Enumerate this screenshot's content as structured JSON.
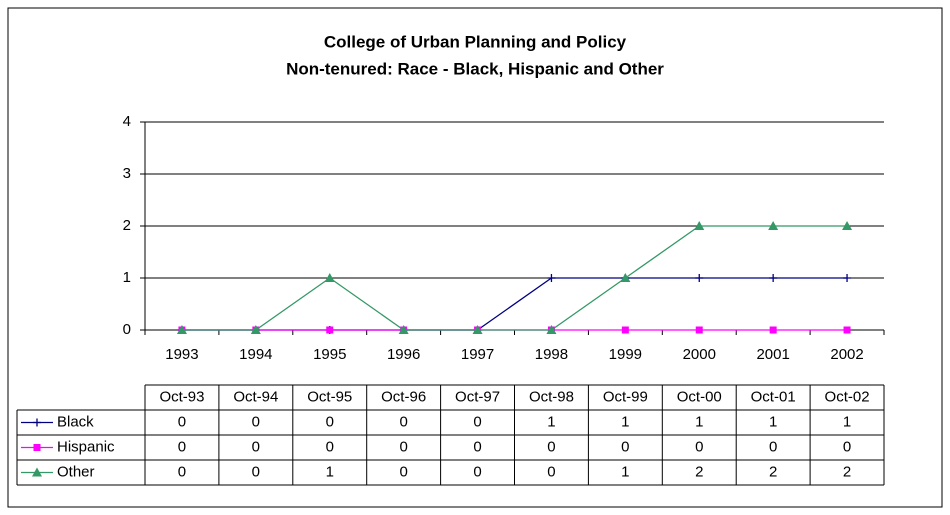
{
  "chart_data": {
    "type": "line",
    "title": "College of Urban Planning and Policy",
    "subtitle": "Non-tenured: Race - Black, Hispanic and Other",
    "categories": [
      "1993",
      "1994",
      "1995",
      "1996",
      "1997",
      "1998",
      "1999",
      "2000",
      "2001",
      "2002"
    ],
    "table_columns": [
      "Oct-93",
      "Oct-94",
      "Oct-95",
      "Oct-96",
      "Oct-97",
      "Oct-98",
      "Oct-99",
      "Oct-00",
      "Oct-01",
      "Oct-02"
    ],
    "series": [
      {
        "name": "Black",
        "color": "#000080",
        "marker": "plus",
        "values": [
          0,
          0,
          0,
          0,
          0,
          1,
          1,
          1,
          1,
          1
        ]
      },
      {
        "name": "Hispanic",
        "color": "#ff00ff",
        "marker": "square",
        "values": [
          0,
          0,
          0,
          0,
          0,
          0,
          0,
          0,
          0,
          0
        ]
      },
      {
        "name": "Other",
        "color": "#339966",
        "marker": "triangle",
        "values": [
          0,
          0,
          1,
          0,
          0,
          0,
          1,
          2,
          2,
          2
        ]
      }
    ],
    "ylim": [
      0,
      4
    ],
    "yticks": [
      0,
      1,
      2,
      3,
      4
    ],
    "grid": true
  }
}
